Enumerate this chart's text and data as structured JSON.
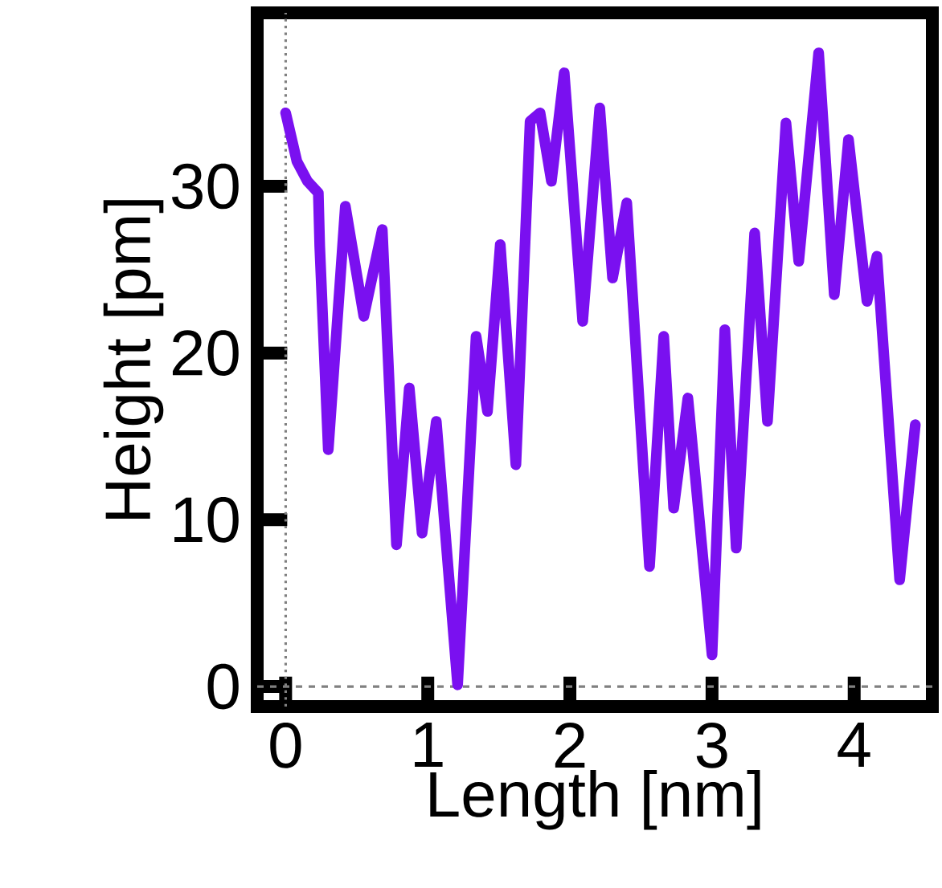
{
  "chart_data": {
    "type": "line",
    "xlabel": "Length [nm]",
    "ylabel": "Height [pm]",
    "x": [
      0.0,
      0.079,
      0.154,
      0.23,
      0.24,
      0.3,
      0.42,
      0.55,
      0.68,
      0.78,
      0.87,
      0.96,
      1.06,
      1.21,
      1.34,
      1.42,
      1.51,
      1.62,
      1.72,
      1.79,
      1.87,
      1.96,
      2.09,
      2.21,
      2.3,
      2.4,
      2.56,
      2.66,
      2.73,
      2.83,
      3.0,
      3.09,
      3.17,
      3.3,
      3.39,
      3.52,
      3.61,
      3.75,
      3.86,
      3.96,
      4.09,
      4.16,
      4.32,
      4.43
    ],
    "series": [
      {
        "color": "#7a10f0",
        "values": [
          34.4,
          31.5,
          30.3,
          29.6,
          26.4,
          14.2,
          28.8,
          22.2,
          27.4,
          8.5,
          17.9,
          9.2,
          15.9,
          0.1,
          21.0,
          16.5,
          26.5,
          13.3,
          33.9,
          34.4,
          30.3,
          36.8,
          21.9,
          34.7,
          24.5,
          29.0,
          7.2,
          21.0,
          10.7,
          17.3,
          1.9,
          21.4,
          8.3,
          27.2,
          15.9,
          33.8,
          25.5,
          38.0,
          23.5,
          32.8,
          23.1,
          25.8,
          6.4,
          15.7
        ]
      }
    ],
    "xlim": [
      -0.2,
      4.55
    ],
    "ylim": [
      -1.2,
      40.4
    ],
    "xticks": [
      0,
      1,
      2,
      3,
      4
    ],
    "yticks": [
      0,
      10,
      20,
      30
    ],
    "ref_lines": [
      {
        "axis": "x",
        "value": 0,
        "line_style": "dotted",
        "color": "#808080"
      },
      {
        "axis": "y",
        "value": 0,
        "line_style": "dashed",
        "color": "#808080"
      }
    ]
  }
}
